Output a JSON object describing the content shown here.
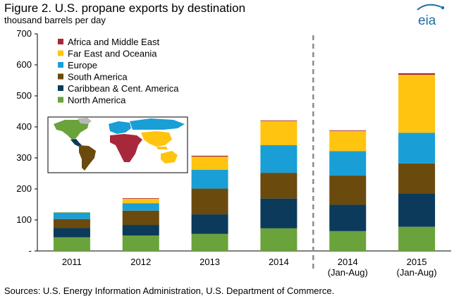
{
  "header": {
    "title": "Figure 2. U.S. propane exports by destination",
    "subtitle": "thousand barrels per day",
    "logo_text": "eia"
  },
  "source_note": "Sources: U.S. Energy Information Administration, U.S. Department of Commerce.",
  "colors": {
    "north_america": "#6aa23b",
    "caribbean": "#0b3a5a",
    "south_america": "#6b4a0e",
    "europe": "#1a9ed6",
    "far_east": "#ffc410",
    "africa_me": "#a7283a",
    "divider": "#8c8c8c",
    "logo": "#1d6fa5",
    "map_gray": "#b8b8b8"
  },
  "chart_data": {
    "type": "bar",
    "stacked": true,
    "categories": [
      "2011",
      "2012",
      "2013",
      "2014",
      "2014 (Jan-Aug)",
      "2015 (Jan-Aug)"
    ],
    "category_labels": [
      [
        "2011"
      ],
      [
        "2012"
      ],
      [
        "2013"
      ],
      [
        "2014"
      ],
      [
        "2014",
        "(Jan-Aug)"
      ],
      [
        "2015",
        "(Jan-Aug)"
      ]
    ],
    "ylim": [
      0,
      700
    ],
    "yticks": [
      "700",
      "600",
      "500",
      "400",
      "300",
      "200",
      "100",
      "-"
    ],
    "ytick_values": [
      700,
      600,
      500,
      400,
      300,
      200,
      100,
      0
    ],
    "series": [
      {
        "name": "North America",
        "color_key": "north_america",
        "values": [
          44,
          50,
          55,
          73,
          64,
          78
        ]
      },
      {
        "name": "Caribbean & Cent. America",
        "color_key": "caribbean",
        "values": [
          30,
          34,
          63,
          96,
          85,
          108
        ]
      },
      {
        "name": "South America",
        "color_key": "south_america",
        "values": [
          29,
          46,
          83,
          83,
          94,
          96
        ]
      },
      {
        "name": "Europe",
        "color_key": "europe",
        "values": [
          21,
          24,
          61,
          89,
          79,
          99
        ]
      },
      {
        "name": "Far East and Oceania",
        "color_key": "far_east",
        "values": [
          1,
          14,
          42,
          78,
          65,
          187
        ]
      },
      {
        "name": "Africa and Middle East",
        "color_key": "africa_me",
        "values": [
          0,
          2,
          3,
          2,
          2,
          5
        ]
      }
    ],
    "legend_order": [
      "Africa and Middle East",
      "Far East and Oceania",
      "Europe",
      "South America",
      "Caribbean & Cent. America",
      "North America"
    ],
    "legend_placement": "top-left",
    "grid": false,
    "divider_after_category": 3
  }
}
